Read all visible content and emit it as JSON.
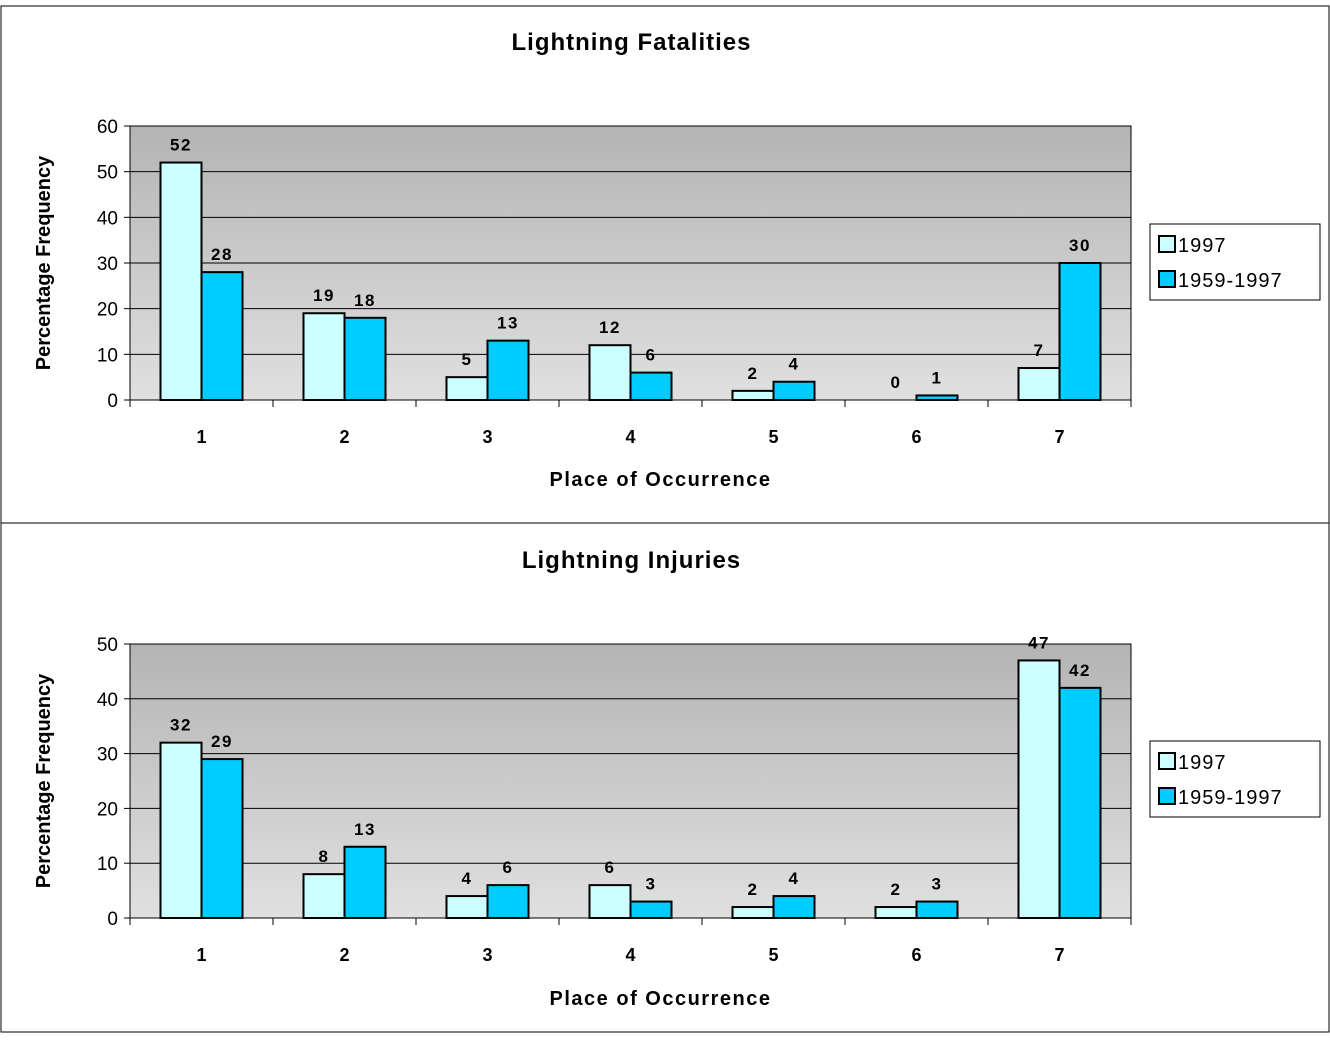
{
  "chart_data": [
    {
      "type": "bar",
      "title": "Lightning Fatalities",
      "xlabel": "Place of Occurrence",
      "ylabel": "Percentage Frequency",
      "categories": [
        "1",
        "2",
        "3",
        "4",
        "5",
        "6",
        "7"
      ],
      "ylim": [
        0,
        60
      ],
      "yticks": [
        0,
        10,
        20,
        30,
        40,
        50,
        60
      ],
      "grid": true,
      "legend_position": "right",
      "series": [
        {
          "name": "1997",
          "color": "#ccffff",
          "values": [
            52,
            19,
            5,
            12,
            2,
            0,
            7
          ]
        },
        {
          "name": "1959-1997",
          "color": "#00ccff",
          "values": [
            28,
            18,
            13,
            6,
            4,
            1,
            30
          ]
        }
      ]
    },
    {
      "type": "bar",
      "title": "Lightning Injuries",
      "xlabel": "Place of Occurrence",
      "ylabel": "Percentage Frequency",
      "categories": [
        "1",
        "2",
        "3",
        "4",
        "5",
        "6",
        "7"
      ],
      "ylim": [
        0,
        50
      ],
      "yticks": [
        0,
        10,
        20,
        30,
        40,
        50
      ],
      "grid": true,
      "legend_position": "right",
      "series": [
        {
          "name": "1997",
          "color": "#ccffff",
          "values": [
            32,
            8,
            4,
            6,
            2,
            2,
            47
          ]
        },
        {
          "name": "1959-1997",
          "color": "#00ccff",
          "values": [
            29,
            13,
            6,
            3,
            4,
            3,
            42
          ]
        }
      ]
    }
  ]
}
